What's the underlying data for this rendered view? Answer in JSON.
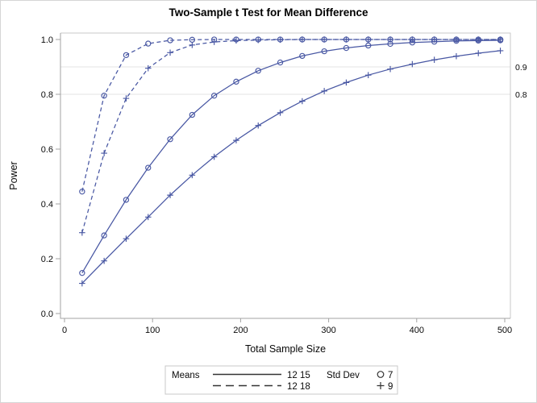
{
  "colors": {
    "series": "#4857a3",
    "ref_line": "#e3e3e3",
    "frame": "#c9c9c9",
    "axis": "#a3a3a3",
    "text": "#0a0a0a",
    "legend_border": "#c9c9c9",
    "legend_sample": "#333333",
    "page_border": "#d6d6d6"
  },
  "chart_data": {
    "type": "line",
    "title": "Two-Sample t Test for Mean Difference",
    "xlabel": "Total Sample Size",
    "ylabel": "Power",
    "xlim": [
      0,
      500
    ],
    "ylim": [
      0.0,
      1.0
    ],
    "grid": "off",
    "x_ticks": [
      {
        "v": 0,
        "label": "0"
      },
      {
        "v": 100,
        "label": "100"
      },
      {
        "v": 200,
        "label": "200"
      },
      {
        "v": 300,
        "label": "300"
      },
      {
        "v": 400,
        "label": "400"
      },
      {
        "v": 500,
        "label": "500"
      }
    ],
    "y_ticks": [
      {
        "v": 0.0,
        "label": "0.0"
      },
      {
        "v": 0.2,
        "label": "0.2"
      },
      {
        "v": 0.4,
        "label": "0.4"
      },
      {
        "v": 0.6,
        "label": "0.6"
      },
      {
        "v": 0.8,
        "label": "0.8"
      },
      {
        "v": 1.0,
        "label": "1.0"
      }
    ],
    "reference_lines": [
      {
        "v": 0.9,
        "label": "0.9"
      },
      {
        "v": 0.8,
        "label": "0.8"
      }
    ],
    "x": [
      20,
      45,
      70,
      95,
      120,
      145,
      170,
      195,
      220,
      245,
      270,
      295,
      320,
      345,
      370,
      395,
      420,
      445,
      470,
      495
    ],
    "series": [
      {
        "name": "means-12-18-stddev-7",
        "means": "12 18",
        "stddev": "7",
        "line": "dashed",
        "marker": "circle",
        "values": [
          0.445,
          0.795,
          0.943,
          0.985,
          0.997,
          0.999,
          1.0,
          1.0,
          1.0,
          1.0,
          1.0,
          1.0,
          1.0,
          1.0,
          1.0,
          1.0,
          1.0,
          1.0,
          1.0,
          1.0
        ]
      },
      {
        "name": "means-12-18-stddev-9",
        "means": "12 18",
        "stddev": "9",
        "line": "dashed",
        "marker": "plus",
        "values": [
          0.295,
          0.585,
          0.785,
          0.895,
          0.952,
          0.98,
          0.991,
          0.996,
          0.998,
          0.999,
          1.0,
          1.0,
          1.0,
          1.0,
          1.0,
          1.0,
          1.0,
          1.0,
          1.0,
          1.0
        ]
      },
      {
        "name": "means-12-15-stddev-7",
        "means": "12 15",
        "stddev": "7",
        "line": "solid",
        "marker": "circle",
        "values": [
          0.148,
          0.285,
          0.415,
          0.532,
          0.636,
          0.725,
          0.795,
          0.846,
          0.886,
          0.916,
          0.94,
          0.957,
          0.969,
          0.978,
          0.984,
          0.989,
          0.992,
          0.995,
          0.996,
          0.997
        ]
      },
      {
        "name": "means-12-15-stddev-9",
        "means": "12 15",
        "stddev": "9",
        "line": "solid",
        "marker": "plus",
        "values": [
          0.11,
          0.192,
          0.273,
          0.352,
          0.432,
          0.505,
          0.572,
          0.632,
          0.686,
          0.733,
          0.775,
          0.812,
          0.843,
          0.87,
          0.892,
          0.91,
          0.926,
          0.939,
          0.95,
          0.959
        ]
      }
    ],
    "legend": {
      "means_label": "Means",
      "means_entries": [
        {
          "pattern": "solid",
          "label": "12 15"
        },
        {
          "pattern": "dashed",
          "label": "12 18"
        }
      ],
      "stddev_label": "Std Dev",
      "stddev_entries": [
        {
          "marker": "circle",
          "label": "7"
        },
        {
          "marker": "plus",
          "label": "9"
        }
      ],
      "position": "bottom-center"
    }
  }
}
